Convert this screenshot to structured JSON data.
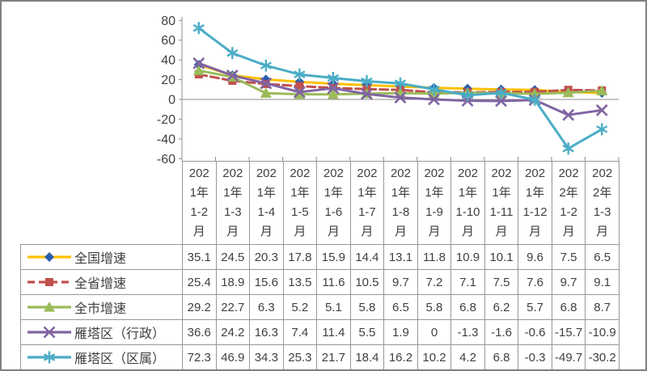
{
  "frame": {
    "background": "#FFFFFF",
    "border_color": "#808080",
    "axis_color": "#8C8C8C",
    "table_border_color": "#979797",
    "text_color": "#404040"
  },
  "chart_data": {
    "type": "line",
    "title": "",
    "xlabel": "",
    "ylabel": "",
    "ylim": [
      -60,
      80
    ],
    "ytick_interval": 20,
    "yticks": [
      80,
      60,
      40,
      20,
      0,
      -20,
      -40,
      -60
    ],
    "grid": false,
    "legend_position": "data-table-left",
    "categories": [
      "2021年1-2月",
      "2021年1-3月",
      "2021年1-4月",
      "2021年1-5月",
      "2021年1-6月",
      "2021年1-7月",
      "2021年1-8月",
      "2021年1-9月",
      "2021年1-10月",
      "2021年1-11月",
      "2021年1-12月",
      "2022年1-2月",
      "2022年1-3月"
    ],
    "series": [
      {
        "name": "全国增速",
        "values": [
          35.1,
          24.5,
          20.3,
          17.8,
          15.9,
          14.4,
          13.1,
          11.8,
          10.9,
          10.1,
          9.6,
          7.5,
          6.5
        ],
        "line_color": "#FFC000",
        "marker": "diamond",
        "marker_color": "#2A5CAB",
        "dashed": false
      },
      {
        "name": "全省增速",
        "values": [
          25.4,
          18.9,
          15.6,
          13.5,
          11.6,
          10.5,
          9.7,
          7.2,
          7.1,
          7.5,
          7.6,
          9.7,
          9.1
        ],
        "line_color": "#C0504D",
        "marker": "square",
        "marker_color": "#C0504D",
        "dashed": true
      },
      {
        "name": "全市增速",
        "values": [
          29.2,
          22.7,
          6.3,
          5.2,
          5.1,
          5.8,
          6.5,
          5.8,
          6.8,
          6.2,
          5.7,
          6.8,
          8.7
        ],
        "line_color": "#9BBB59",
        "marker": "triangle",
        "marker_color": "#9BBB59",
        "dashed": false
      },
      {
        "name": "雁塔区（行政）",
        "values": [
          36.6,
          24.2,
          16.3,
          7.4,
          11.4,
          5.5,
          1.9,
          0,
          -1.3,
          -1.6,
          -0.6,
          -15.7,
          -10.9
        ],
        "line_color": "#8064A2",
        "marker": "x",
        "marker_color": "#8064A2",
        "dashed": false
      },
      {
        "name": "雁塔区（区属）",
        "values": [
          72.3,
          46.9,
          34.3,
          25.3,
          21.7,
          18.4,
          16.2,
          10.2,
          4.2,
          6.8,
          -0.3,
          -49.7,
          -30.2
        ],
        "line_color": "#4BACC6",
        "marker": "asterisk",
        "marker_color": "#4BACC6",
        "dashed": false
      }
    ]
  },
  "table": {
    "header_lines": [
      [
        "202",
        "1年",
        "1-2",
        "月"
      ],
      [
        "202",
        "1年",
        "1-3",
        "月"
      ],
      [
        "202",
        "1年",
        "1-4",
        "月"
      ],
      [
        "202",
        "1年",
        "1-5",
        "月"
      ],
      [
        "202",
        "1年",
        "1-6",
        "月"
      ],
      [
        "202",
        "1年",
        "1-7",
        "月"
      ],
      [
        "202",
        "1年",
        "1-8",
        "月"
      ],
      [
        "202",
        "1年",
        "1-9",
        "月"
      ],
      [
        "202",
        "1年",
        "1-10",
        "月"
      ],
      [
        "202",
        "1年",
        "1-11",
        "月"
      ],
      [
        "202",
        "1年",
        "1-12",
        "月"
      ],
      [
        "202",
        "2年",
        "1-2",
        "月"
      ],
      [
        "202",
        "2年",
        "1-3",
        "月"
      ]
    ]
  }
}
